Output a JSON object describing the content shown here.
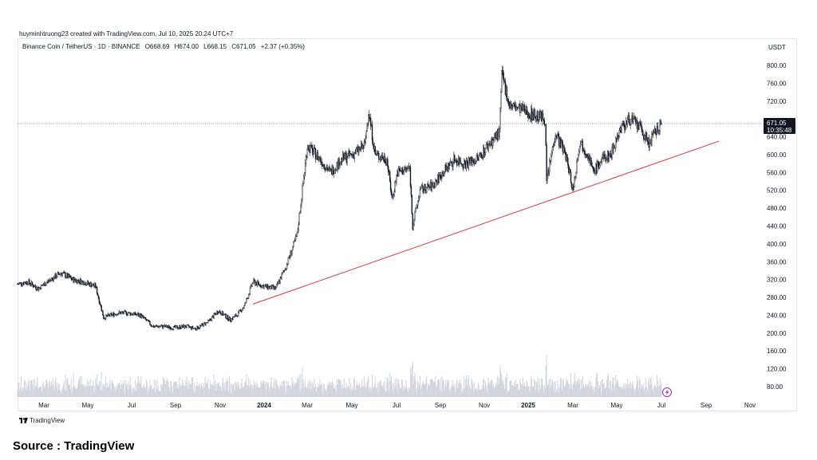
{
  "attribution": "huyminhtruong23 created with TradingView.com, Jul 10, 2025 20:24 UTC+7",
  "legend": {
    "symbol": "Binance Coin / TetherUS · 1D · BINANCE",
    "open": "O668.69",
    "high": "H674.00",
    "low": "L668.15",
    "close": "C671.05",
    "change": "+2.37 (+0.35%)"
  },
  "currency": "USDT",
  "price_label": {
    "price": "671.05",
    "countdown": "10:35:48"
  },
  "brand": "TradingView",
  "source": "Source : TradingView",
  "colors": {
    "candle": "#131722",
    "trendline": "#d84a5a",
    "volume": "#d1d4dc",
    "badge": "#9c27b0",
    "label_bg": "#131722"
  },
  "icons": {
    "brand": "tradingview-logo-icon",
    "badge": "lightning-icon"
  },
  "chart_data": {
    "type": "candlestick",
    "x_ticks": [
      "Mar",
      "May",
      "Jul",
      "Sep",
      "Nov",
      "2024",
      "Mar",
      "May",
      "Jul",
      "Sep",
      "Nov",
      "2025",
      "Mar",
      "May",
      "Jul",
      "Sep",
      "Nov"
    ],
    "y_ticks": [
      80,
      120,
      160,
      200,
      240,
      280,
      320,
      360,
      400,
      440,
      480,
      520,
      560,
      600,
      640,
      680,
      720,
      760,
      800
    ],
    "ylim": [
      60,
      820
    ],
    "current_price": 671.05,
    "series": [
      {
        "values": [
          [
            "2023-02-15",
            310
          ],
          [
            "2023-03-01",
            315
          ],
          [
            "2023-03-15",
            300
          ],
          [
            "2023-04-01",
            320
          ],
          [
            "2023-04-15",
            335
          ],
          [
            "2023-05-01",
            320
          ],
          [
            "2023-05-15",
            315
          ],
          [
            "2023-06-01",
            305
          ],
          [
            "2023-06-12",
            235
          ],
          [
            "2023-07-01",
            245
          ],
          [
            "2023-07-15",
            245
          ],
          [
            "2023-08-01",
            240
          ],
          [
            "2023-08-18",
            215
          ],
          [
            "2023-09-01",
            215
          ],
          [
            "2023-09-15",
            212
          ],
          [
            "2023-10-01",
            215
          ],
          [
            "2023-10-15",
            210
          ],
          [
            "2023-11-01",
            225
          ],
          [
            "2023-11-15",
            250
          ],
          [
            "2023-12-01",
            230
          ],
          [
            "2023-12-10",
            240
          ],
          [
            "2023-12-20",
            260
          ],
          [
            "2024-01-01",
            315
          ],
          [
            "2024-01-15",
            305
          ],
          [
            "2024-02-01",
            300
          ],
          [
            "2024-02-15",
            350
          ],
          [
            "2024-03-01",
            420
          ],
          [
            "2024-03-10",
            550
          ],
          [
            "2024-03-15",
            620
          ],
          [
            "2024-04-01",
            590
          ],
          [
            "2024-04-15",
            560
          ],
          [
            "2024-05-01",
            590
          ],
          [
            "2024-05-15",
            600
          ],
          [
            "2024-06-01",
            620
          ],
          [
            "2024-06-06",
            700
          ],
          [
            "2024-06-15",
            600
          ],
          [
            "2024-07-01",
            590
          ],
          [
            "2024-07-08",
            500
          ],
          [
            "2024-07-15",
            560
          ],
          [
            "2024-08-01",
            570
          ],
          [
            "2024-08-05",
            440
          ],
          [
            "2024-08-15",
            520
          ],
          [
            "2024-09-01",
            530
          ],
          [
            "2024-09-15",
            560
          ],
          [
            "2024-10-01",
            590
          ],
          [
            "2024-10-15",
            580
          ],
          [
            "2024-11-01",
            590
          ],
          [
            "2024-11-15",
            620
          ],
          [
            "2024-12-01",
            650
          ],
          [
            "2024-12-04",
            780
          ],
          [
            "2024-12-15",
            710
          ],
          [
            "2025-01-01",
            700
          ],
          [
            "2025-01-15",
            690
          ],
          [
            "2025-02-01",
            680
          ],
          [
            "2025-02-03",
            540
          ],
          [
            "2025-02-15",
            650
          ],
          [
            "2025-03-01",
            600
          ],
          [
            "2025-03-11",
            520
          ],
          [
            "2025-03-20",
            630
          ],
          [
            "2025-04-01",
            600
          ],
          [
            "2025-04-07",
            560
          ],
          [
            "2025-04-20",
            590
          ],
          [
            "2025-05-01",
            600
          ],
          [
            "2025-05-10",
            640
          ],
          [
            "2025-05-15",
            660
          ],
          [
            "2025-05-28",
            680
          ],
          [
            "2025-06-10",
            660
          ],
          [
            "2025-06-22",
            625
          ],
          [
            "2025-07-01",
            650
          ],
          [
            "2025-07-10",
            671.05
          ]
        ]
      }
    ],
    "trendline": [
      [
        "2024-01-01",
        265
      ],
      [
        "2025-09-25",
        630
      ]
    ]
  }
}
